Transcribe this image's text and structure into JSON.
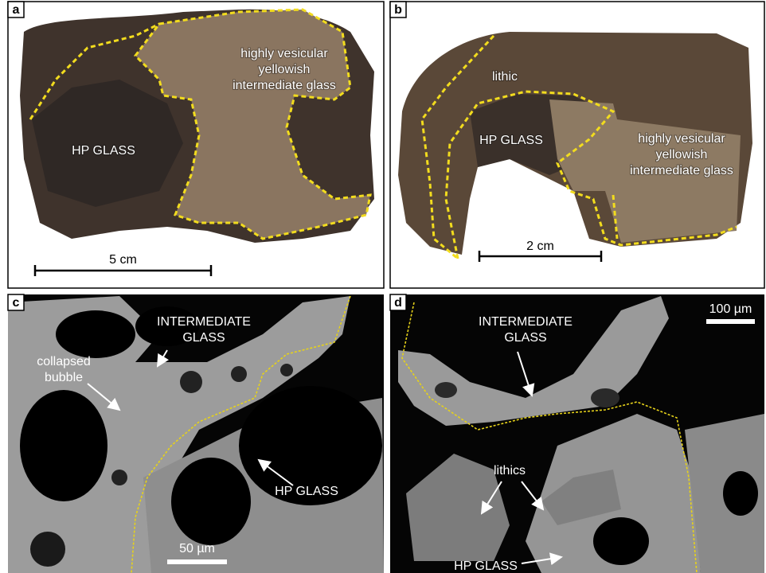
{
  "panels": [
    {
      "letter": "a",
      "labels": [
        {
          "lines": [
            "highly vesicular",
            "yellowish",
            "intermediate glass"
          ]
        },
        {
          "lines": [
            "HP GLASS"
          ]
        }
      ],
      "scale_bar": "5 cm"
    },
    {
      "letter": "b",
      "labels": [
        {
          "lines": [
            "lithic"
          ]
        },
        {
          "lines": [
            "HP GLASS"
          ]
        },
        {
          "lines": [
            "highly vesicular",
            "yellowish",
            "intermediate glass"
          ]
        }
      ],
      "scale_bar": "2 cm"
    },
    {
      "letter": "c",
      "labels": [
        {
          "lines": [
            "INTERMEDIATE",
            "GLASS"
          ]
        },
        {
          "lines": [
            "collapsed",
            "bubble"
          ]
        },
        {
          "lines": [
            "HP GLASS"
          ]
        }
      ],
      "scale_bar": "50 µm"
    },
    {
      "letter": "d",
      "labels": [
        {
          "lines": [
            "INTERMEDIATE",
            "GLASS"
          ]
        },
        {
          "lines": [
            "lithics"
          ]
        },
        {
          "lines": [
            "HP GLASS"
          ]
        }
      ],
      "scale_bar": "100 µm"
    }
  ]
}
